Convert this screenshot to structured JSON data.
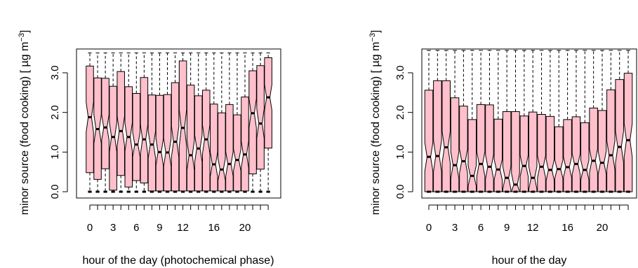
{
  "chart_data": [
    {
      "type": "boxplot",
      "notched": true,
      "xlabel": "hour of the day (photochemical phase)",
      "ylabel": "minor source (food cooking) [ µg m",
      "ylabel_exponent": "−3",
      "ylabel_close": "]",
      "ylim": [
        0,
        3.6
      ],
      "yticks": [
        0.0,
        1.0,
        2.0,
        3.0
      ],
      "ytick_labels": [
        "0.0",
        "1.0",
        "2.0",
        "3.0"
      ],
      "xticks": [
        0,
        1,
        2,
        3,
        4,
        5,
        6,
        7,
        8,
        9,
        10,
        11,
        12,
        13,
        14,
        15,
        16,
        17,
        18,
        19,
        20,
        21,
        22,
        23
      ],
      "xtick_labels": [
        "0",
        "3",
        "6",
        "9",
        "12",
        "16",
        "20"
      ],
      "xtick_label_positions": [
        0,
        3,
        6,
        9,
        12,
        16,
        20
      ],
      "box_fill": "#ffc0cb",
      "boxes": [
        {
          "hour": 0,
          "min": 0,
          "q1": 0.48,
          "median": 1.88,
          "q3": 3.17,
          "max": 3.5
        },
        {
          "hour": 1,
          "min": 0,
          "q1": 0.31,
          "median": 1.58,
          "q3": 2.87,
          "max": 3.5
        },
        {
          "hour": 2,
          "min": 0,
          "q1": 0.58,
          "median": 1.62,
          "q3": 2.86,
          "max": 3.5
        },
        {
          "hour": 3,
          "min": 0,
          "q1": 0.04,
          "median": 1.38,
          "q3": 2.66,
          "max": 3.5
        },
        {
          "hour": 4,
          "min": 0,
          "q1": 0.41,
          "median": 1.53,
          "q3": 3.03,
          "max": 3.5
        },
        {
          "hour": 5,
          "min": 0,
          "q1": 0.12,
          "median": 1.38,
          "q3": 2.65,
          "max": 3.5
        },
        {
          "hour": 6,
          "min": 0,
          "q1": 0.28,
          "median": 1.19,
          "q3": 2.48,
          "max": 3.5
        },
        {
          "hour": 7,
          "min": 0,
          "q1": 0.22,
          "median": 1.32,
          "q3": 2.88,
          "max": 3.5
        },
        {
          "hour": 8,
          "min": 0,
          "q1": 0.02,
          "median": 1.19,
          "q3": 2.44,
          "max": 3.5
        },
        {
          "hour": 9,
          "min": 0,
          "q1": 0.02,
          "median": 1.0,
          "q3": 2.43,
          "max": 3.5
        },
        {
          "hour": 10,
          "min": 0,
          "q1": 0.02,
          "median": 0.99,
          "q3": 2.45,
          "max": 3.5
        },
        {
          "hour": 11,
          "min": 0,
          "q1": 0.02,
          "median": 1.26,
          "q3": 2.75,
          "max": 3.5
        },
        {
          "hour": 12,
          "min": 0,
          "q1": 0.02,
          "median": 1.61,
          "q3": 3.3,
          "max": 3.5
        },
        {
          "hour": 13,
          "min": 0,
          "q1": 0.02,
          "median": 0.92,
          "q3": 2.69,
          "max": 3.5
        },
        {
          "hour": 14,
          "min": 0,
          "q1": 0.02,
          "median": 1.09,
          "q3": 2.42,
          "max": 3.5
        },
        {
          "hour": 15,
          "min": 0,
          "q1": 0.02,
          "median": 1.32,
          "q3": 2.56,
          "max": 3.5
        },
        {
          "hour": 16,
          "min": 0,
          "q1": 0.02,
          "median": 0.69,
          "q3": 2.21,
          "max": 3.5
        },
        {
          "hour": 17,
          "min": 0,
          "q1": 0.02,
          "median": 0.56,
          "q3": 1.99,
          "max": 3.5
        },
        {
          "hour": 18,
          "min": 0,
          "q1": 0.02,
          "median": 0.7,
          "q3": 2.2,
          "max": 3.5
        },
        {
          "hour": 19,
          "min": 0,
          "q1": 0.02,
          "median": 0.8,
          "q3": 1.94,
          "max": 3.5
        },
        {
          "hour": 20,
          "min": 0,
          "q1": 0.02,
          "median": 0.94,
          "q3": 2.39,
          "max": 3.5
        },
        {
          "hour": 21,
          "min": 0,
          "q1": 0.45,
          "median": 1.98,
          "q3": 3.05,
          "max": 3.5
        },
        {
          "hour": 22,
          "min": 0,
          "q1": 0.57,
          "median": 1.72,
          "q3": 3.18,
          "max": 3.5
        },
        {
          "hour": 23,
          "min": 0,
          "q1": 1.1,
          "median": 2.38,
          "q3": 3.38,
          "max": 3.5
        }
      ]
    },
    {
      "type": "boxplot",
      "notched": true,
      "xlabel": "hour of the day",
      "ylabel": "minor source (food cooking) [ µg m",
      "ylabel_exponent": "−3",
      "ylabel_close": "]",
      "ylim": [
        0,
        3.6
      ],
      "yticks": [
        0.0,
        1.0,
        2.0,
        3.0
      ],
      "ytick_labels": [
        "0.0",
        "1.0",
        "2.0",
        "3.0"
      ],
      "xticks": [
        0,
        1,
        2,
        3,
        4,
        5,
        6,
        7,
        8,
        9,
        10,
        11,
        12,
        13,
        14,
        15,
        16,
        17,
        18,
        19,
        20,
        21,
        22,
        23
      ],
      "xtick_labels": [
        "0",
        "3",
        "6",
        "9",
        "12",
        "16",
        "20"
      ],
      "xtick_label_positions": [
        0,
        3,
        6,
        9,
        12,
        16,
        20
      ],
      "box_fill": "#ffc0cb",
      "boxes": [
        {
          "hour": 0,
          "min": 0,
          "q1": 0.0,
          "median": 0.88,
          "q3": 2.56,
          "max": 3.6
        },
        {
          "hour": 1,
          "min": 0,
          "q1": 0.0,
          "median": 0.9,
          "q3": 2.8,
          "max": 3.6
        },
        {
          "hour": 2,
          "min": 0,
          "q1": 0.0,
          "median": 1.12,
          "q3": 2.8,
          "max": 3.6
        },
        {
          "hour": 3,
          "min": 0,
          "q1": 0.0,
          "median": 0.67,
          "q3": 2.37,
          "max": 3.6
        },
        {
          "hour": 4,
          "min": 0,
          "q1": 0.0,
          "median": 0.77,
          "q3": 2.16,
          "max": 3.6
        },
        {
          "hour": 5,
          "min": 0,
          "q1": 0.0,
          "median": 0.4,
          "q3": 1.82,
          "max": 3.6
        },
        {
          "hour": 6,
          "min": 0,
          "q1": 0.0,
          "median": 0.7,
          "q3": 2.2,
          "max": 3.6
        },
        {
          "hour": 7,
          "min": 0,
          "q1": 0.0,
          "median": 0.63,
          "q3": 2.19,
          "max": 3.6
        },
        {
          "hour": 8,
          "min": 0,
          "q1": 0.0,
          "median": 0.56,
          "q3": 1.83,
          "max": 3.6
        },
        {
          "hour": 9,
          "min": 0,
          "q1": 0.0,
          "median": 0.35,
          "q3": 2.02,
          "max": 3.6
        },
        {
          "hour": 10,
          "min": 0,
          "q1": 0.0,
          "median": 0.18,
          "q3": 2.02,
          "max": 3.6
        },
        {
          "hour": 11,
          "min": 0,
          "q1": 0.0,
          "median": 0.65,
          "q3": 1.91,
          "max": 3.6
        },
        {
          "hour": 12,
          "min": 0,
          "q1": 0.0,
          "median": 0.35,
          "q3": 2.01,
          "max": 3.6
        },
        {
          "hour": 13,
          "min": 0,
          "q1": 0.0,
          "median": 0.63,
          "q3": 1.95,
          "max": 3.6
        },
        {
          "hour": 14,
          "min": 0,
          "q1": 0.0,
          "median": 0.55,
          "q3": 1.9,
          "max": 3.6
        },
        {
          "hour": 15,
          "min": 0,
          "q1": 0.0,
          "median": 0.57,
          "q3": 1.64,
          "max": 3.6
        },
        {
          "hour": 16,
          "min": 0,
          "q1": 0.0,
          "median": 0.62,
          "q3": 1.82,
          "max": 3.6
        },
        {
          "hour": 17,
          "min": 0,
          "q1": 0.0,
          "median": 0.7,
          "q3": 1.89,
          "max": 3.6
        },
        {
          "hour": 18,
          "min": 0,
          "q1": 0.0,
          "median": 0.55,
          "q3": 1.74,
          "max": 3.6
        },
        {
          "hour": 19,
          "min": 0,
          "q1": 0.0,
          "median": 0.78,
          "q3": 2.11,
          "max": 3.6
        },
        {
          "hour": 20,
          "min": 0,
          "q1": 0.0,
          "median": 0.73,
          "q3": 2.05,
          "max": 3.6
        },
        {
          "hour": 21,
          "min": 0,
          "q1": 0.0,
          "median": 0.92,
          "q3": 2.57,
          "max": 3.6
        },
        {
          "hour": 22,
          "min": 0,
          "q1": 0.0,
          "median": 1.13,
          "q3": 2.83,
          "max": 3.6
        },
        {
          "hour": 23,
          "min": 0,
          "q1": 0.0,
          "median": 1.3,
          "q3": 2.99,
          "max": 3.6
        }
      ]
    }
  ]
}
